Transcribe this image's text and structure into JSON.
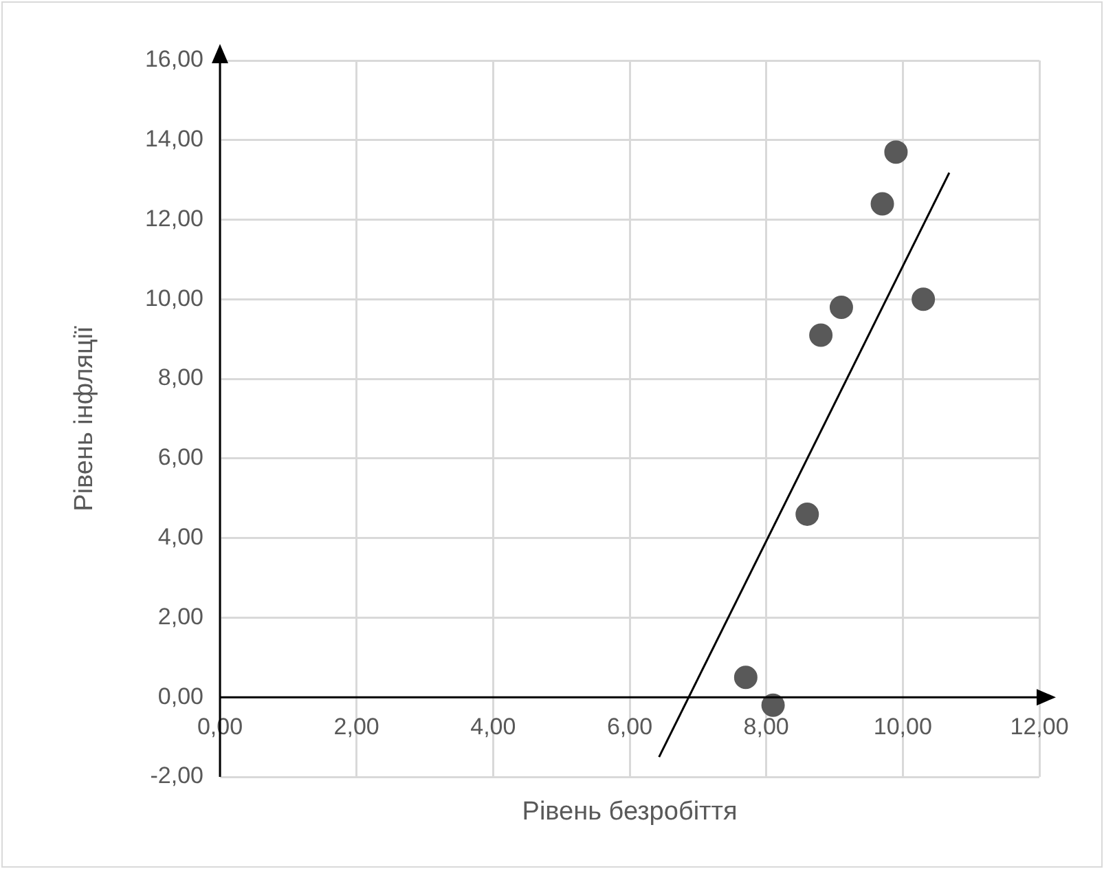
{
  "chart_data": {
    "type": "scatter",
    "xlabel": "Рівень безробіття",
    "ylabel": "Рівень інфляції",
    "marker": "circle",
    "grid": true,
    "series": [
      {
        "color": "#595959",
        "x": [
          7.7,
          8.1,
          8.6,
          8.8,
          9.1,
          9.7,
          9.9,
          10.3
        ],
        "values": [
          0.5,
          -0.2,
          4.6,
          9.1,
          9.8,
          12.4,
          13.7,
          10.0
        ]
      },
      {
        "type": "line",
        "color": "#000000",
        "marker": "none",
        "x": [
          6.43,
          10.68
        ],
        "values": [
          -1.5,
          13.18
        ]
      }
    ],
    "xlim": [
      0,
      12
    ],
    "xticks": [
      {
        "value": 0,
        "label": "0,00"
      },
      {
        "value": 2,
        "label": "2,00"
      },
      {
        "value": 4,
        "label": "4,00"
      },
      {
        "value": 6,
        "label": "6,00"
      },
      {
        "value": 8,
        "label": "8,00"
      },
      {
        "value": 10,
        "label": "10,00"
      },
      {
        "value": 12,
        "label": "12,00"
      }
    ],
    "ylim": [
      -2,
      16
    ],
    "yticks": [
      {
        "value": -2,
        "label": "-2,00"
      },
      {
        "value": 0,
        "label": "0,00"
      },
      {
        "value": 2,
        "label": "2,00"
      },
      {
        "value": 4,
        "label": "4,00"
      },
      {
        "value": 6,
        "label": "6,00"
      },
      {
        "value": 8,
        "label": "8,00"
      },
      {
        "value": 10,
        "label": "10,00"
      },
      {
        "value": 12,
        "label": "12,00"
      },
      {
        "value": 14,
        "label": "14,00"
      },
      {
        "value": 16,
        "label": "16,00"
      }
    ]
  }
}
